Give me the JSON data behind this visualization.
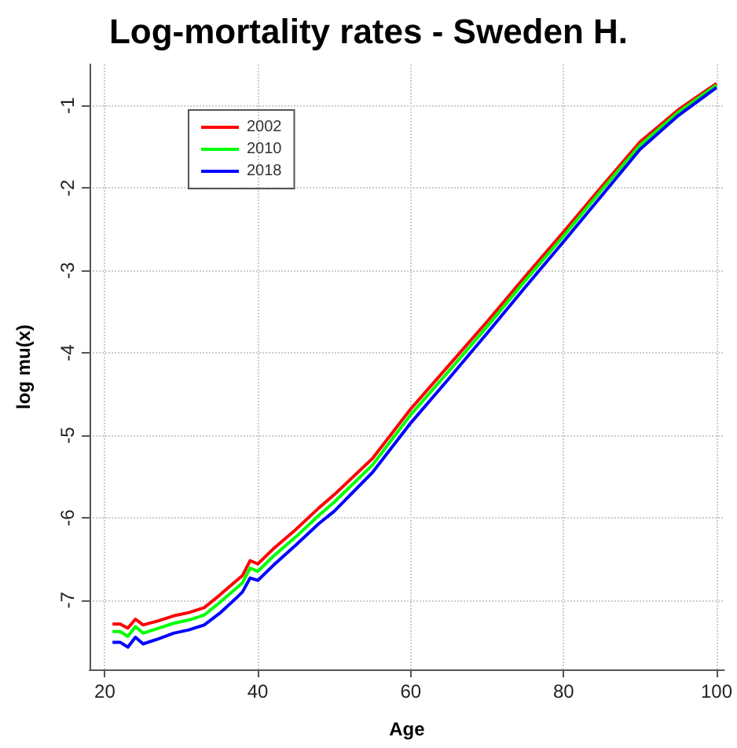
{
  "chart_data": {
    "type": "line",
    "title": "Log-mortality rates - Sweden H.",
    "xlabel": "Age",
    "ylabel": "log mu(x)",
    "x": [
      21,
      22,
      23,
      24,
      25,
      27,
      29,
      31,
      33,
      35,
      37,
      38,
      39,
      40,
      42,
      45,
      48,
      50,
      55,
      60,
      65,
      70,
      75,
      80,
      85,
      90,
      95,
      100
    ],
    "series": [
      {
        "name": "2002",
        "color": "#ff0000",
        "values": [
          -7.29,
          -7.29,
          -7.34,
          -7.23,
          -7.3,
          -7.25,
          -7.19,
          -7.15,
          -7.09,
          -6.94,
          -6.78,
          -6.7,
          -6.52,
          -6.56,
          -6.38,
          -6.14,
          -5.88,
          -5.72,
          -5.28,
          -4.68,
          -4.15,
          -3.62,
          -3.07,
          -2.53,
          -1.98,
          -1.44,
          -1.05,
          -0.73
        ]
      },
      {
        "name": "2010",
        "color": "#00ff00",
        "values": [
          -7.38,
          -7.38,
          -7.44,
          -7.32,
          -7.4,
          -7.34,
          -7.28,
          -7.24,
          -7.18,
          -7.03,
          -6.87,
          -6.79,
          -6.61,
          -6.65,
          -6.47,
          -6.23,
          -5.97,
          -5.81,
          -5.36,
          -4.75,
          -4.22,
          -3.68,
          -3.12,
          -2.58,
          -2.02,
          -1.48,
          -1.08,
          -0.75
        ]
      },
      {
        "name": "2018",
        "color": "#0000ff",
        "values": [
          -7.51,
          -7.51,
          -7.57,
          -7.45,
          -7.53,
          -7.47,
          -7.4,
          -7.36,
          -7.3,
          -7.16,
          -6.99,
          -6.9,
          -6.73,
          -6.76,
          -6.58,
          -6.33,
          -6.07,
          -5.92,
          -5.45,
          -4.85,
          -4.31,
          -3.76,
          -3.2,
          -2.65,
          -2.09,
          -1.53,
          -1.12,
          -0.78
        ]
      }
    ],
    "xlim": [
      18,
      101
    ],
    "xticks": [
      20,
      40,
      60,
      80,
      100
    ],
    "ylim": [
      -7.84,
      -0.5
    ],
    "yticks": [
      -7,
      -6,
      -5,
      -4,
      -3,
      -2,
      -1
    ],
    "grid": true,
    "legend": "top left",
    "marker": "none",
    "line_style": "solid"
  }
}
